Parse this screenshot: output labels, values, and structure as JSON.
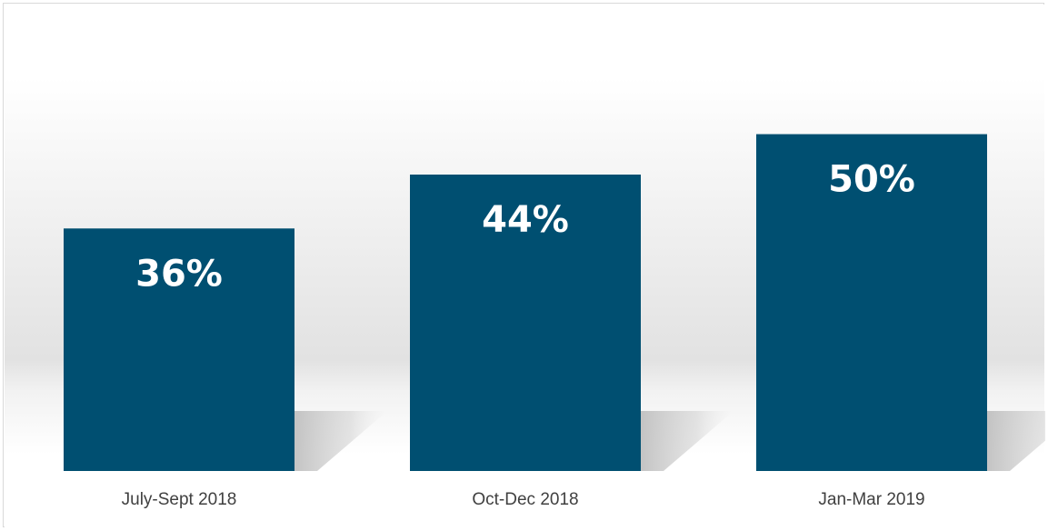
{
  "chart_data": {
    "type": "bar",
    "categories": [
      "July-Sept 2018",
      "Oct-Dec 2018",
      "Jan-Mar 2019"
    ],
    "values": [
      36,
      44,
      50
    ],
    "data_labels": [
      "36%",
      "44%",
      "50%"
    ],
    "title": "",
    "xlabel": "",
    "ylabel": "",
    "ylim": [
      0,
      66
    ],
    "grid": false,
    "legend": "none",
    "bar_color": "#004f71",
    "label_color": "#ffffff"
  }
}
